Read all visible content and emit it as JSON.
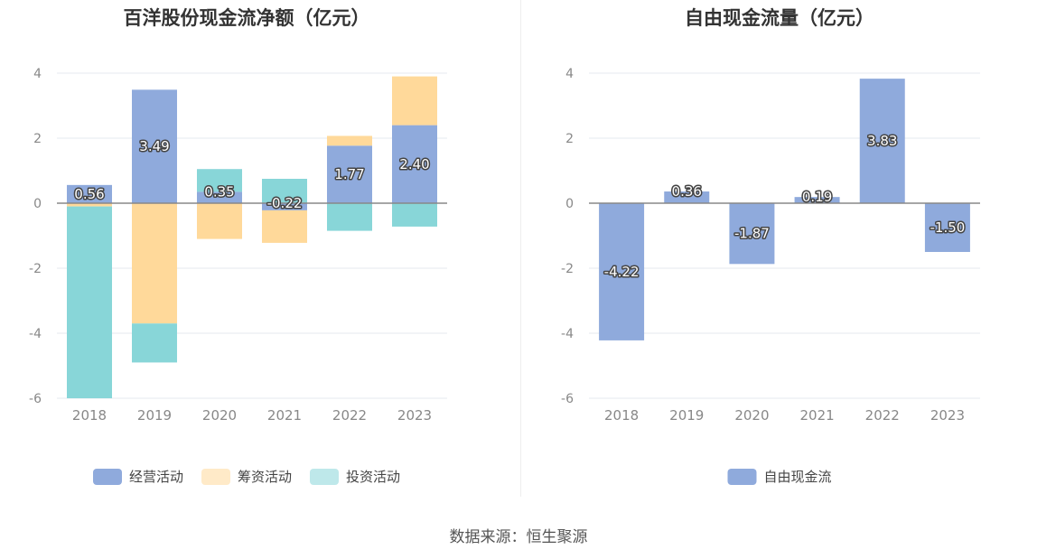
{
  "source": "数据来源：恒生聚源",
  "chart_data": [
    {
      "type": "bar",
      "stacked": true,
      "title": "百洋股份现金流净额（亿元）",
      "categories": [
        "2018",
        "2019",
        "2020",
        "2021",
        "2022",
        "2023"
      ],
      "ylim": [
        -6,
        4
      ],
      "yticks": [
        4,
        2,
        0,
        -2,
        -4,
        -6
      ],
      "grid": true,
      "legend_position": "bottom",
      "series": [
        {
          "name": "经营活动",
          "color": "#8faadc",
          "values": [
            0.56,
            3.49,
            0.35,
            -0.22,
            1.77,
            2.4
          ],
          "labels": [
            "0.56",
            "3.49",
            "0.35",
            "-0.22",
            "1.77",
            "2.40"
          ]
        },
        {
          "name": "筹资活动",
          "color": "#ffd99a",
          "values": [
            -0.1,
            -3.7,
            -1.1,
            -1.0,
            0.3,
            1.5
          ]
        },
        {
          "name": "投资活动",
          "color": "#88d6d8",
          "values": [
            -5.9,
            -1.2,
            0.7,
            0.75,
            -0.85,
            -0.72
          ]
        }
      ]
    },
    {
      "type": "bar",
      "title": "自由现金流量（亿元）",
      "categories": [
        "2018",
        "2019",
        "2020",
        "2021",
        "2022",
        "2023"
      ],
      "ylim": [
        -6,
        4
      ],
      "yticks": [
        4,
        2,
        0,
        -2,
        -4,
        -6
      ],
      "grid": true,
      "legend_position": "bottom",
      "series": [
        {
          "name": "自由现金流",
          "color": "#8faadc",
          "values": [
            -4.22,
            0.36,
            -1.87,
            0.19,
            3.83,
            -1.5
          ],
          "labels": [
            "-4.22",
            "0.36",
            "-1.87",
            "0.19",
            "3.83",
            "-1.50"
          ]
        }
      ]
    }
  ]
}
